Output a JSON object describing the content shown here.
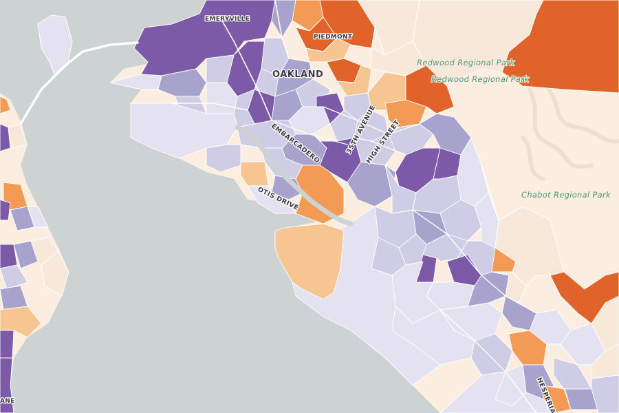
{
  "map": {
    "colors": {
      "water": "#cdd2d3",
      "land": "#fbeee1",
      "roads": "#ffffff",
      "park_label": "#4e9478",
      "scale": {
        "purple_dark": "#7c5aa7",
        "purple_mid": "#a8a3cc",
        "purple_light": "#cfcce5",
        "lavender": "#e4e2f0",
        "cream": "#f7e8da",
        "peach": "#f7c592",
        "orange": "#f39a55",
        "orange_dark": "#e0642a"
      }
    },
    "labels": {
      "emeryville": "EMERYVILLE",
      "piedmont": "PIEDMONT",
      "oakland": "OAKLAND",
      "redwood_park_1": "Redwood Regional Park",
      "redwood_park_2": "Redwood Regional Park",
      "chabot_park": "Chabot Regional Park",
      "embarcadero": "EMBARCADERO",
      "avenue_35th": "35TH AVENUE",
      "high_street": "HIGH STREET",
      "otis_drive": "OTIS DRIVE",
      "hesperian": "HESPERIAN",
      "lane_fragment": "ANE"
    }
  }
}
